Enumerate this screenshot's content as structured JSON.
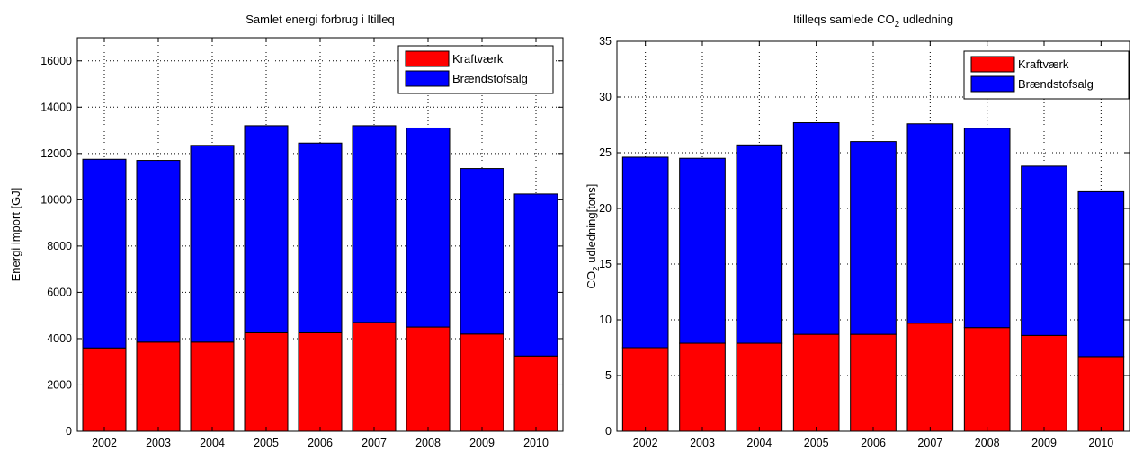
{
  "colors": {
    "series1": "#ff0000",
    "series2": "#0000ff",
    "axis": "#000000",
    "grid": "#000000"
  },
  "chart_data": [
    {
      "type": "bar",
      "stacked": true,
      "title": "Samlet energi forbrug i Itilleq",
      "xlabel": "",
      "ylabel": "Energi import [GJ]",
      "ylim": [
        0,
        17000
      ],
      "yticks": [
        0,
        2000,
        4000,
        6000,
        8000,
        10000,
        12000,
        14000,
        16000
      ],
      "grid": true,
      "legend_position": "top-right",
      "categories": [
        "2002",
        "2003",
        "2004",
        "2005",
        "2006",
        "2007",
        "2008",
        "2009",
        "2010"
      ],
      "series": [
        {
          "name": "Kraftværk",
          "color": "#ff0000",
          "values": [
            3600,
            3850,
            3850,
            4250,
            4250,
            4700,
            4500,
            4200,
            3250
          ]
        },
        {
          "name": "Brændstofsalg",
          "color": "#0000ff",
          "values": [
            8150,
            7850,
            8500,
            8950,
            8200,
            8500,
            8600,
            7150,
            7000
          ]
        }
      ]
    },
    {
      "type": "bar",
      "stacked": true,
      "title": "Itilleqs samlede CO2 udledning",
      "title_parts": {
        "before": "Itilleqs samlede CO",
        "sub": "2",
        "after": " udledning"
      },
      "xlabel": "",
      "ylabel": "CO2 udledning[tons]",
      "ylabel_parts": {
        "before": "CO",
        "sub": "2",
        "after": " udledning[tons]"
      },
      "ylim": [
        0,
        35
      ],
      "yticks": [
        0,
        5,
        10,
        15,
        20,
        25,
        30,
        35
      ],
      "grid": true,
      "legend_position": "top-right",
      "categories": [
        "2002",
        "2003",
        "2004",
        "2005",
        "2006",
        "2007",
        "2008",
        "2009",
        "2010"
      ],
      "series": [
        {
          "name": "Kraftværk",
          "color": "#ff0000",
          "values": [
            7.5,
            7.9,
            7.9,
            8.7,
            8.7,
            9.7,
            9.3,
            8.6,
            6.7
          ]
        },
        {
          "name": "Brændstofsalg",
          "color": "#0000ff",
          "values": [
            17.1,
            16.6,
            17.8,
            19.0,
            17.3,
            17.9,
            17.9,
            15.2,
            14.8
          ]
        }
      ]
    }
  ]
}
